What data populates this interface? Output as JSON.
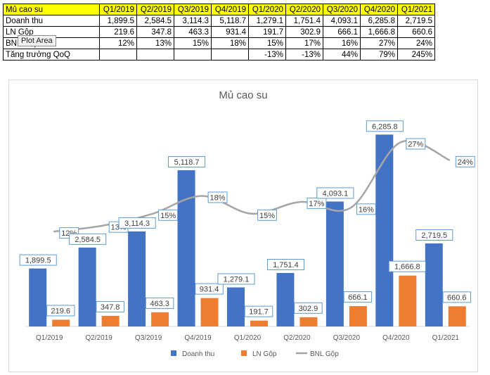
{
  "table": {
    "headers": [
      "Mủ cao su",
      "Q1/2019",
      "Q2/2019",
      "Q3/2019",
      "Q4/2019",
      "Q1/2020",
      "Q2/2020",
      "Q3/2020",
      "Q4/2020",
      "Q1/2021"
    ],
    "rows": [
      {
        "label": "Doanh thu",
        "cells": [
          "1,899.5",
          "2,584.5",
          "3,114.3",
          "5,118.7",
          "1,279.1",
          "1,751.4",
          "4,093.1",
          "6,285.8",
          "2,719.5"
        ]
      },
      {
        "label": "LN Gộp",
        "cells": [
          "219.6",
          "347.8",
          "463.3",
          "931.4",
          "191.7",
          "302.9",
          "666.1",
          "1,666.8",
          "660.6"
        ]
      },
      {
        "label": "BNL Gộp",
        "cells": [
          "12%",
          "13%",
          "15%",
          "18%",
          "15%",
          "17%",
          "16%",
          "27%",
          "24%"
        ]
      },
      {
        "label": "Tăng trưởng QoQ",
        "cells": [
          "",
          "",
          "",
          "",
          "-13%",
          "-13%",
          "44%",
          "79%",
          "245%"
        ]
      }
    ]
  },
  "tooltip": "Plot Area",
  "chart_data": {
    "type": "bar",
    "title": "Mủ cao su",
    "categories": [
      "Q1/2019",
      "Q2/2019",
      "Q3/2019",
      "Q4/2019",
      "Q1/2020",
      "Q2/2020",
      "Q3/2020",
      "Q4/2020",
      "Q1/2021"
    ],
    "series": [
      {
        "name": "Doanh thu",
        "type": "bar",
        "axis": "primary",
        "color": "#4472c4",
        "values": [
          1899.5,
          2584.5,
          3114.3,
          5118.7,
          1279.1,
          1751.4,
          4093.1,
          6285.8,
          2719.5
        ],
        "labels": [
          "1,899.5",
          "2,584.5",
          "3,114.3",
          "5,118.7",
          "1,279.1",
          "1,751.4",
          "4,093.1",
          "6,285.8",
          "2,719.5"
        ]
      },
      {
        "name": "LN Gộp",
        "type": "bar",
        "axis": "primary",
        "color": "#ed7d31",
        "values": [
          219.6,
          347.8,
          463.3,
          931.4,
          191.7,
          302.9,
          666.1,
          1666.8,
          660.6
        ],
        "labels": [
          "219.6",
          "347.8",
          "463.3",
          "931.4",
          "191.7",
          "302.9",
          "666.1",
          "1,666.8",
          "660.6"
        ]
      },
      {
        "name": "BNL Gộp",
        "type": "line",
        "axis": "secondary",
        "color": "#a5a5a5",
        "values": [
          0.12,
          0.13,
          0.15,
          0.18,
          0.15,
          0.17,
          0.16,
          0.27,
          0.24
        ],
        "labels": [
          "12%",
          "13%",
          "15%",
          "18%",
          "15%",
          "17%",
          "16%",
          "27%",
          "24%"
        ]
      }
    ],
    "ylim": [
      0,
      6500
    ],
    "y2lim": [
      0,
      0.3
    ],
    "axes_visible": false,
    "grid": false,
    "legend": "bottom",
    "colors": {
      "label_border": "#5b9bd5",
      "axis_line": "#d9d9d9",
      "text": "#404040"
    }
  }
}
